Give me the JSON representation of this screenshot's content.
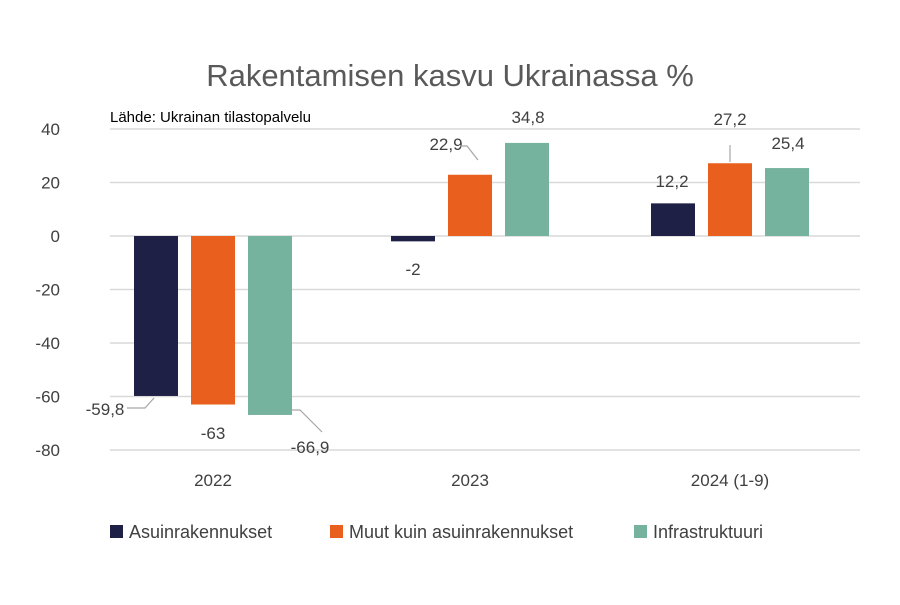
{
  "chart_data": {
    "type": "bar",
    "title": "Rakentamisen kasvu Ukrainassa %",
    "source": "Lähde: Ukrainan tilastopalvelu",
    "categories": [
      "2022",
      "2023",
      "2024 (1-9)"
    ],
    "series": [
      {
        "name": "Asuinrakennukset",
        "color": "#1f2045",
        "values": [
          -59.8,
          -2,
          12.2
        ],
        "labels": [
          "-59,8",
          "-2",
          "12,2"
        ]
      },
      {
        "name": "Muut kuin asuinrakennukset",
        "color": "#e9601e",
        "values": [
          -63,
          22.9,
          27.2
        ],
        "labels": [
          "-63",
          "22,9",
          "27,2"
        ]
      },
      {
        "name": "Infrastruktuuri",
        "color": "#76b39e",
        "values": [
          -66.9,
          34.8,
          25.4
        ],
        "labels": [
          "-66,9",
          "34,8",
          "25,4"
        ]
      }
    ],
    "yticks": [
      "40",
      "20",
      "0",
      "-20",
      "-40",
      "-60",
      "-80"
    ],
    "ytick_values": [
      40,
      20,
      0,
      -20,
      -40,
      -60,
      -80
    ],
    "ylim": [
      -80,
      40
    ],
    "grid": true,
    "legend": "bottom"
  }
}
